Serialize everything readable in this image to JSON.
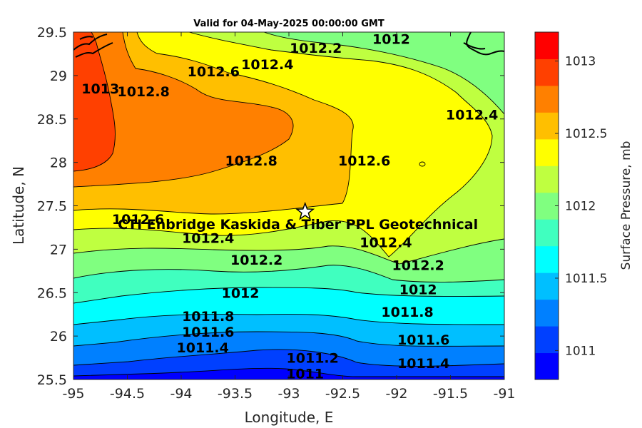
{
  "title": "Valid for 04-May-2025 00:00:00 GMT",
  "axes": {
    "xlabel": "Longitude, E",
    "ylabel": "Latitude, N",
    "xlim": [
      -95,
      -91
    ],
    "ylim": [
      25.5,
      29.5
    ],
    "xticks": [
      "-95",
      "-94.5",
      "-94",
      "-93.5",
      "-93",
      "-92.5",
      "-92",
      "-91.5",
      "-91"
    ],
    "yticks": [
      "29.5",
      "29",
      "28.5",
      "28",
      "27.5",
      "27",
      "26.5",
      "26",
      "25.5"
    ]
  },
  "colorbar": {
    "label": "Surface Pressure, mb",
    "range": [
      1010.8,
      1013.2
    ],
    "step": 0.2,
    "ticks": [
      "1013",
      "1012.5",
      "1012",
      "1011.5",
      "1011"
    ],
    "colors": [
      "#0000ff",
      "#0040ff",
      "#0080ff",
      "#00bfff",
      "#00ffff",
      "#40ffbf",
      "#80ff80",
      "#bfff40",
      "#ffff00",
      "#ffbf00",
      "#ff8000",
      "#ff4000",
      "#ff0000"
    ]
  },
  "site": {
    "label": "CTI Enbridge  Kaskida & Tiber PPL Geotechnical",
    "lon": -92.85,
    "lat": 27.43
  },
  "chart_data": {
    "type": "contour",
    "variable": "Surface Pressure, mb",
    "x_range": [
      -95,
      -91
    ],
    "y_range": [
      25.5,
      29.5
    ],
    "contour_labels": [
      {
        "text": "1013",
        "lon": -94.75,
        "lat": 28.85
      },
      {
        "text": "1012.8",
        "lon": -94.35,
        "lat": 28.82
      },
      {
        "text": "1012.6",
        "lon": -93.7,
        "lat": 29.05
      },
      {
        "text": "1012.4",
        "lon": -93.2,
        "lat": 29.13
      },
      {
        "text": "1012.2",
        "lon": -92.75,
        "lat": 29.32
      },
      {
        "text": "1012",
        "lon": -92.05,
        "lat": 29.42
      },
      {
        "text": "1012.4",
        "lon": -91.3,
        "lat": 28.55
      },
      {
        "text": "1012.8",
        "lon": -93.35,
        "lat": 28.02
      },
      {
        "text": "1012.6",
        "lon": -92.3,
        "lat": 28.02
      },
      {
        "text": "1012.6",
        "lon": -94.4,
        "lat": 27.35
      },
      {
        "text": "1012.4",
        "lon": -93.75,
        "lat": 27.13
      },
      {
        "text": "1012.2",
        "lon": -93.3,
        "lat": 26.88
      },
      {
        "text": "1012",
        "lon": -93.45,
        "lat": 26.5
      },
      {
        "text": "1011.8",
        "lon": -93.75,
        "lat": 26.23
      },
      {
        "text": "1011.6",
        "lon": -93.75,
        "lat": 26.05
      },
      {
        "text": "1011.4",
        "lon": -93.8,
        "lat": 25.87
      },
      {
        "text": "1011.2",
        "lon": -92.78,
        "lat": 25.75
      },
      {
        "text": "1011",
        "lon": -92.85,
        "lat": 25.57
      },
      {
        "text": "1012.4",
        "lon": -92.1,
        "lat": 27.08
      },
      {
        "text": "1012.2",
        "lon": -91.8,
        "lat": 26.82
      },
      {
        "text": "1012",
        "lon": -91.8,
        "lat": 26.54
      },
      {
        "text": "1011.8",
        "lon": -91.9,
        "lat": 26.28
      },
      {
        "text": "1011.6",
        "lon": -91.75,
        "lat": 25.96
      },
      {
        "text": "1011.4",
        "lon": -91.75,
        "lat": 25.69
      }
    ]
  }
}
